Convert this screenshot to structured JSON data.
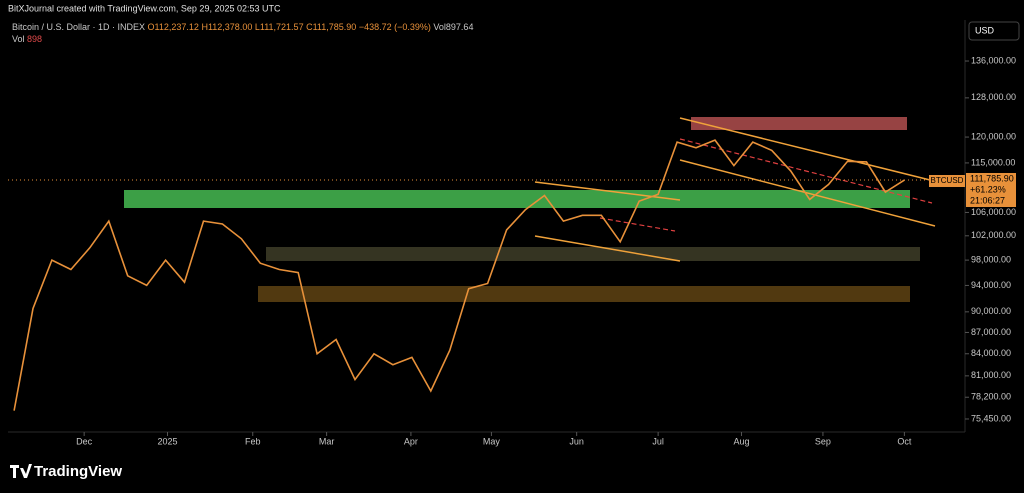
{
  "header": "BitXJournal created with TradingView.com, Sep 29, 2025 02:53 UTC",
  "legend": {
    "symbol": "Bitcoin / U.S. Dollar · 1D · INDEX",
    "open": "O112,237.12",
    "high": "H112,378.00",
    "low": "L111,721.57",
    "close": "C111,785.90",
    "change": "−438.72 (−0.39%)",
    "volume": "Vol897.64",
    "vol_label": "Vol",
    "vol_value": "898"
  },
  "currency": "USD",
  "price_tag": {
    "symbol": "BTCUSD",
    "price": "111,785.90",
    "change": "+61.23%",
    "countdown": "21:06:27"
  },
  "footer": "TradingView",
  "chart_data": {
    "type": "line",
    "log_scale": true,
    "color": "#e8913a",
    "values": [
      76500,
      90500,
      98000,
      96500,
      100000,
      104500,
      95500,
      94000,
      98000,
      94500,
      104500,
      104000,
      101500,
      97500,
      96500,
      96000,
      84000,
      86000,
      80500,
      84000,
      82500,
      83500,
      79000,
      84500,
      93500,
      94300,
      103000,
      106500,
      109000,
      104500,
      105500,
      105500,
      101000,
      108000,
      109200,
      119000,
      117900,
      119400,
      114500,
      119000,
      117400,
      113500,
      108300,
      111000,
      115300,
      115200,
      109600,
      111785.9
    ],
    "xlim": [
      -0.32,
      50.2
    ],
    "xticks": [
      {
        "value": 3.7,
        "label": "Dec"
      },
      {
        "value": 8.1,
        "label": "2025"
      },
      {
        "value": 12.6,
        "label": "Feb"
      },
      {
        "value": 16.5,
        "label": "Mar"
      },
      {
        "value": 20.95,
        "label": "Apr"
      },
      {
        "value": 25.2,
        "label": "May"
      },
      {
        "value": 29.7,
        "label": "Jun"
      },
      {
        "value": 34.0,
        "label": "Jul"
      },
      {
        "value": 38.4,
        "label": "Aug"
      },
      {
        "value": 42.7,
        "label": "Sep"
      },
      {
        "value": 47.0,
        "label": "Oct"
      }
    ],
    "ylim": [
      73850,
      145500
    ],
    "yticks": [
      {
        "value": 136000,
        "label": "136,000.00"
      },
      {
        "value": 128000,
        "label": "128,000.00"
      },
      {
        "value": 120000,
        "label": "120,000.00"
      },
      {
        "value": 115000,
        "label": "115,000.00"
      },
      {
        "value": 106000,
        "label": "106,000.00"
      },
      {
        "value": 102000,
        "label": "102,000.00"
      },
      {
        "value": 98000,
        "label": "98,000.00"
      },
      {
        "value": 94000,
        "label": "94,000.00"
      },
      {
        "value": 90000,
        "label": "90,000.00"
      },
      {
        "value": 87000,
        "label": "87,000.00"
      },
      {
        "value": 84000,
        "label": "84,000.00"
      },
      {
        "value": 81000,
        "label": "81,000.00"
      },
      {
        "value": 78200,
        "label": "78,200.00"
      },
      {
        "value": 75450,
        "label": "75,450.00"
      }
    ]
  }
}
